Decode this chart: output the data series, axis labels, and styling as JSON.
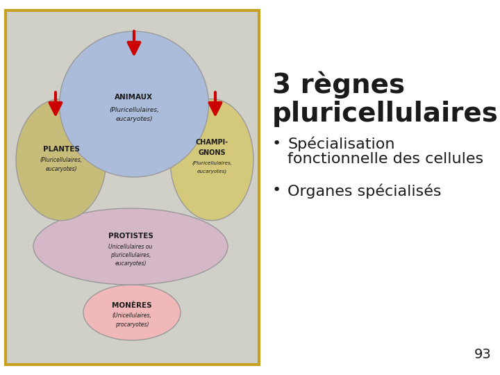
{
  "title_line1": "3 règnes",
  "title_line2": "pluricellulaires",
  "bullet1_line1": "Spécialisation",
  "bullet1_line2": "fonctionnelle des cellules",
  "bullet2": "Organes spécialisés",
  "page_number": "93",
  "bg_color": "#ffffff",
  "left_panel_bg": "#d0cfc8",
  "border_color": "#c8a020",
  "title_fontsize": 28,
  "bullet_fontsize": 16,
  "page_fontsize": 14,
  "ellipse_animaux_color": "#aabcda",
  "ellipse_plantes_color": "#c8bc7a",
  "ellipse_champignons_color": "#d4c87a",
  "ellipse_protistes_color": "#d4b8c8",
  "ellipse_moneres_color": "#f0b8b8",
  "arrow_color": "#cc0000",
  "text_color": "#1a1a1a"
}
